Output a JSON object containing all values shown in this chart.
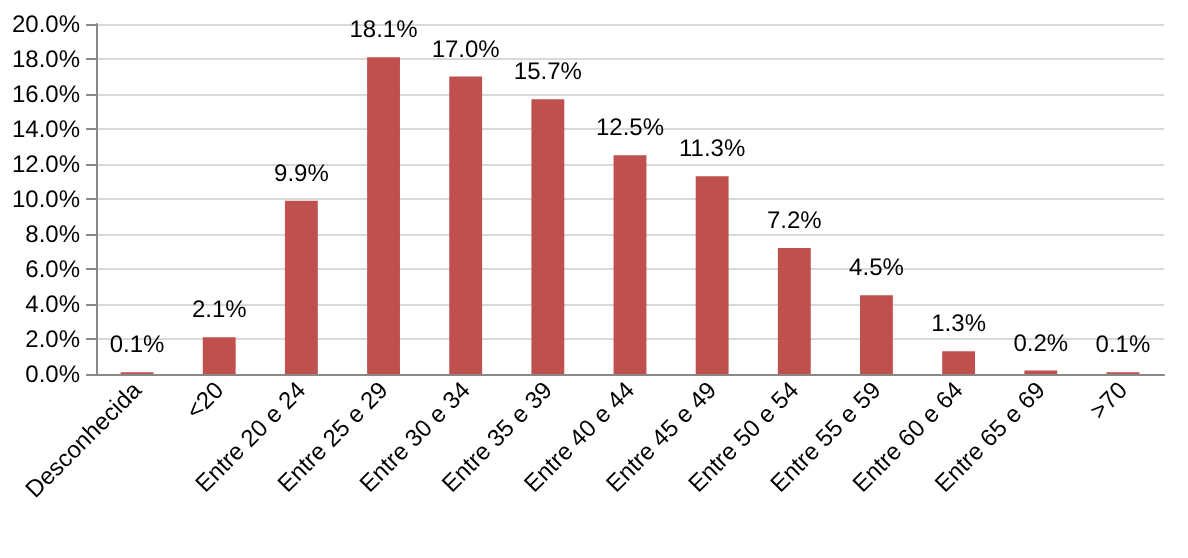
{
  "chart_data": {
    "type": "bar",
    "categories": [
      "Desconhecida",
      "<20",
      "Entre 20 e 24",
      "Entre 25 e 29",
      "Entre 30 e 34",
      "Entre 35 e 39",
      "Entre 40 e 44",
      "Entre 45 e 49",
      "Entre 50 e 54",
      "Entre 55 e 59",
      "Entre 60 e 64",
      "Entre 65 e 69",
      ">70"
    ],
    "values": [
      0.1,
      2.1,
      9.9,
      18.1,
      17.0,
      15.7,
      12.5,
      11.3,
      7.2,
      4.5,
      1.3,
      0.2,
      0.1
    ],
    "value_labels": [
      "0.1%",
      "2.1%",
      "9.9%",
      "18.1%",
      "17.0%",
      "15.7%",
      "12.5%",
      "11.3%",
      "7.2%",
      "4.5%",
      "1.3%",
      "0.2%",
      "0.1%"
    ],
    "color": "#c0504d",
    "ylim": [
      0,
      20
    ],
    "yticks": [
      {
        "value": 0,
        "label": "0.0%"
      },
      {
        "value": 2,
        "label": "2.0%"
      },
      {
        "value": 4,
        "label": "4.0%"
      },
      {
        "value": 6,
        "label": "6.0%"
      },
      {
        "value": 8,
        "label": "8.0%"
      },
      {
        "value": 10,
        "label": "10.0%"
      },
      {
        "value": 12,
        "label": "12.0%"
      },
      {
        "value": 14,
        "label": "14.0%"
      },
      {
        "value": 16,
        "label": "16.0%"
      },
      {
        "value": 18,
        "label": "18.0%"
      },
      {
        "value": 20,
        "label": "20.0%"
      }
    ],
    "grid": "y"
  }
}
